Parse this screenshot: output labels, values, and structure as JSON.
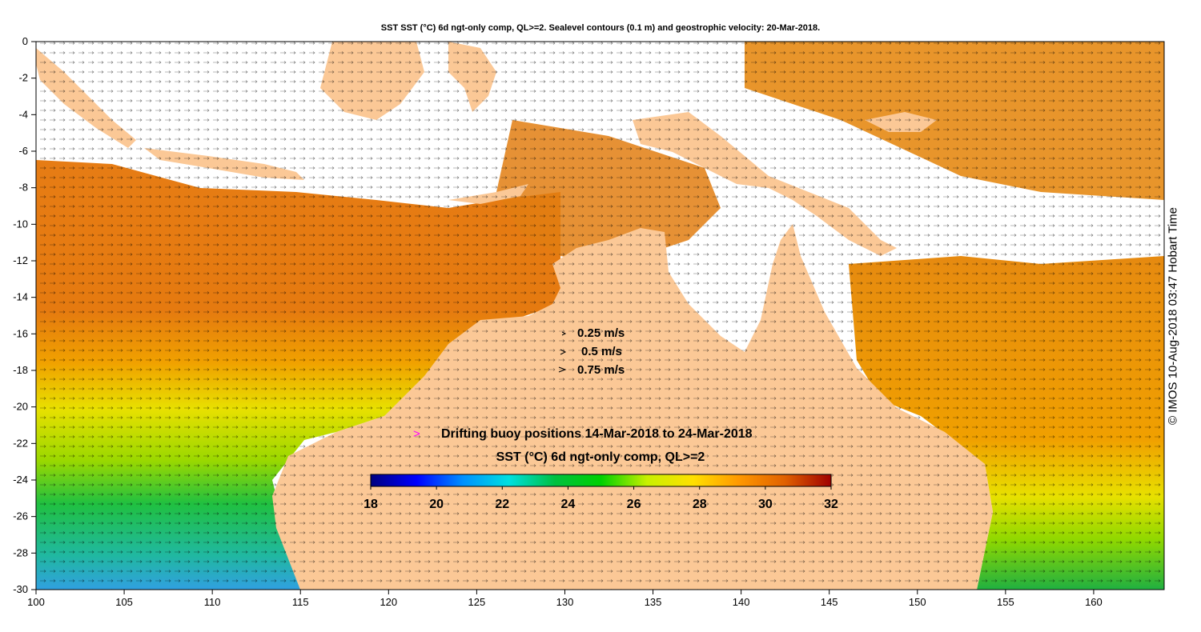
{
  "title": "SST SST (°C) 6d ngt-only comp, QL>=2. Sealevel contours (0.1 m) and geostrophic velocity: 20-Mar-2018.",
  "credit": "© IMOS 10-Aug-2018 03:47 Hobart Time",
  "map": {
    "lon_range": [
      100,
      164
    ],
    "lat_range": [
      -30,
      0
    ],
    "x_ticks": [
      100,
      105,
      110,
      115,
      120,
      125,
      130,
      135,
      140,
      145,
      150,
      155,
      160
    ],
    "y_ticks": [
      0,
      -2,
      -4,
      -6,
      -8,
      -10,
      -12,
      -14,
      -16,
      -18,
      -20,
      -22,
      -24,
      -26,
      -28,
      -30
    ],
    "land_color": "#fbc896",
    "ocean_color": "#ffffff"
  },
  "velocity_key": {
    "icon": "vector-arrow-icon",
    "entries": [
      {
        "label": "0.25 m/s"
      },
      {
        "label": "0.5 m/s"
      },
      {
        "label": "0.75 m/s"
      }
    ]
  },
  "buoy_legend": {
    "icon": "buoy-marker-icon",
    "marker_color": "#ff00ff",
    "marker_symbol": ">",
    "label": "Drifting buoy positions 14-Mar-2018 to 24-Mar-2018"
  },
  "colorbar": {
    "title": "SST (°C) 6d ngt-only comp, QL>=2",
    "min": 18,
    "max": 32,
    "ticks": [
      "18",
      "20",
      "22",
      "24",
      "26",
      "28",
      "30",
      "32"
    ],
    "stops": [
      "#00007f",
      "#0000ff",
      "#0090ff",
      "#00e0e0",
      "#00c040",
      "#00d000",
      "#c8f000",
      "#ffe000",
      "#ff9800",
      "#e06000",
      "#a00000"
    ]
  }
}
